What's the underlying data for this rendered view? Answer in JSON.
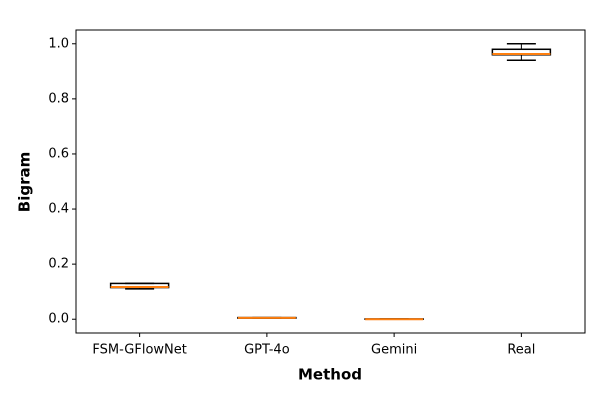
{
  "chart_data": {
    "type": "box",
    "xlabel": "Method",
    "ylabel": "Bigram",
    "categories": [
      "FSM-GFlowNet",
      "GPT-4o",
      "Gemini",
      "Real"
    ],
    "boxes": [
      {
        "min": 0.11,
        "q1": 0.115,
        "median": 0.117,
        "q3": 0.13,
        "max": 0.13
      },
      {
        "min": 0.004,
        "q1": 0.004,
        "median": 0.005,
        "q3": 0.006,
        "max": 0.006
      },
      {
        "min": 0.0,
        "q1": 0.0,
        "median": 0.0,
        "q3": 0.001,
        "max": 0.001
      },
      {
        "min": 0.94,
        "q1": 0.96,
        "median": 0.963,
        "q3": 0.98,
        "max": 1.0
      }
    ],
    "box_color": "#000000",
    "median_color": "#ff7f0e",
    "ylim": [
      -0.05,
      1.05
    ],
    "yticks": [
      {
        "value": 0,
        "label": "0.0"
      },
      0.2,
      0.4,
      0.6,
      0.8,
      {
        "value": 1,
        "label": "1.0"
      }
    ]
  }
}
